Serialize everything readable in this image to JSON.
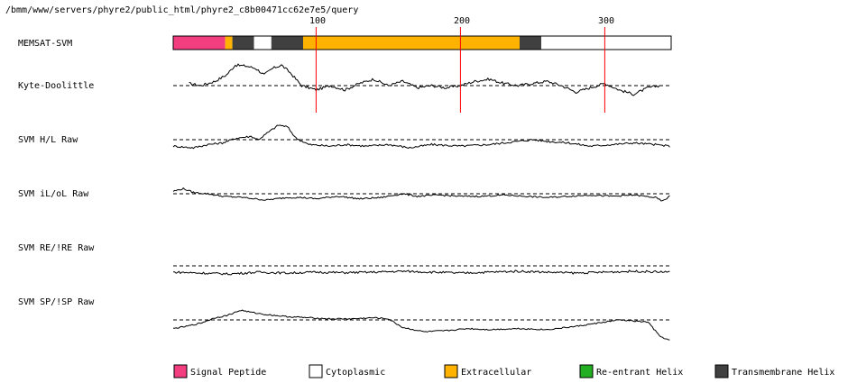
{
  "path_label": "/bmm/www/servers/phyre2/public_html/phyre2_c8b00471cc62e7e5/query",
  "axis": {
    "ticks": [
      {
        "value": 100,
        "label": "100"
      },
      {
        "value": 200,
        "label": "200"
      },
      {
        "value": 300,
        "label": "300"
      }
    ],
    "length": 345
  },
  "tracks": [
    {
      "key": "memsat",
      "label": "MEMSAT-SVM"
    },
    {
      "key": "kd",
      "label": "Kyte-Doolittle"
    },
    {
      "key": "hl",
      "label": "SVM H/L Raw"
    },
    {
      "key": "iloL",
      "label": "SVM iL/oL Raw"
    },
    {
      "key": "re",
      "label": "SVM RE/!RE Raw"
    },
    {
      "key": "sp",
      "label": "SVM SP/!SP Raw"
    }
  ],
  "memsat_segments": [
    {
      "start": 1,
      "end": 37,
      "type": "signal"
    },
    {
      "start": 37,
      "end": 42,
      "type": "extracellular"
    },
    {
      "start": 42,
      "end": 57,
      "type": "transmembrane"
    },
    {
      "start": 57,
      "end": 69,
      "type": "cytoplasmic"
    },
    {
      "start": 69,
      "end": 91,
      "type": "transmembrane"
    },
    {
      "start": 91,
      "end": 241,
      "type": "extracellular"
    },
    {
      "start": 241,
      "end": 256,
      "type": "transmembrane"
    },
    {
      "start": 256,
      "end": 345,
      "type": "cytoplasmic"
    }
  ],
  "colors": {
    "signal": "#f23d7f",
    "cytoplasmic": "#ffffff",
    "extracellular": "#ffb300",
    "reentrant": "#22b022",
    "transmembrane": "#404040",
    "tick_line": "#ff0000",
    "trace": "#000000",
    "frame": "#000000"
  },
  "legend": [
    {
      "type": "signal",
      "label": "Signal Peptide"
    },
    {
      "type": "cytoplasmic",
      "label": "Cytoplasmic"
    },
    {
      "type": "extracellular",
      "label": "Extracellular"
    },
    {
      "type": "reentrant",
      "label": "Re-entrant Helix"
    },
    {
      "type": "transmembrane",
      "label": "Transmembrane Helix"
    }
  ],
  "profiles": {
    "kd": [
      [
        12,
        0.1
      ],
      [
        20,
        0.0
      ],
      [
        30,
        0.2
      ],
      [
        38,
        0.5
      ],
      [
        44,
        0.95
      ],
      [
        52,
        0.9
      ],
      [
        58,
        0.8
      ],
      [
        64,
        0.5
      ],
      [
        70,
        0.8
      ],
      [
        76,
        0.95
      ],
      [
        82,
        0.6
      ],
      [
        90,
        0.0
      ],
      [
        100,
        -0.2
      ],
      [
        110,
        0.0
      ],
      [
        120,
        -0.2
      ],
      [
        130,
        0.1
      ],
      [
        140,
        0.3
      ],
      [
        150,
        0.0
      ],
      [
        160,
        0.2
      ],
      [
        170,
        -0.1
      ],
      [
        180,
        0.0
      ],
      [
        190,
        -0.1
      ],
      [
        200,
        0.0
      ],
      [
        210,
        0.2
      ],
      [
        220,
        0.3
      ],
      [
        230,
        0.1
      ],
      [
        240,
        0.0
      ],
      [
        250,
        0.1
      ],
      [
        260,
        0.2
      ],
      [
        270,
        0.0
      ],
      [
        280,
        -0.3
      ],
      [
        290,
        -0.1
      ],
      [
        300,
        0.1
      ],
      [
        310,
        -0.2
      ],
      [
        320,
        -0.4
      ],
      [
        330,
        -0.1
      ],
      [
        338,
        0.0
      ]
    ],
    "hl": [
      [
        1,
        -0.4
      ],
      [
        15,
        -0.5
      ],
      [
        25,
        -0.3
      ],
      [
        35,
        -0.2
      ],
      [
        45,
        0.1
      ],
      [
        55,
        0.2
      ],
      [
        60,
        0.0
      ],
      [
        66,
        0.4
      ],
      [
        74,
        0.9
      ],
      [
        80,
        0.8
      ],
      [
        86,
        0.1
      ],
      [
        95,
        -0.3
      ],
      [
        110,
        -0.4
      ],
      [
        120,
        -0.3
      ],
      [
        135,
        -0.4
      ],
      [
        150,
        -0.3
      ],
      [
        165,
        -0.5
      ],
      [
        180,
        -0.3
      ],
      [
        200,
        -0.4
      ],
      [
        220,
        -0.3
      ],
      [
        240,
        -0.1
      ],
      [
        250,
        0.0
      ],
      [
        260,
        -0.1
      ],
      [
        275,
        -0.2
      ],
      [
        290,
        -0.4
      ],
      [
        305,
        -0.3
      ],
      [
        320,
        -0.2
      ],
      [
        335,
        -0.3
      ],
      [
        345,
        -0.4
      ]
    ],
    "iloL": [
      [
        1,
        0.2
      ],
      [
        8,
        0.4
      ],
      [
        15,
        0.1
      ],
      [
        25,
        0.0
      ],
      [
        35,
        -0.2
      ],
      [
        50,
        -0.3
      ],
      [
        65,
        -0.5
      ],
      [
        80,
        -0.3
      ],
      [
        90,
        -0.3
      ],
      [
        100,
        -0.4
      ],
      [
        115,
        -0.2
      ],
      [
        130,
        -0.4
      ],
      [
        145,
        -0.3
      ],
      [
        160,
        0.0
      ],
      [
        170,
        -0.2
      ],
      [
        185,
        -0.1
      ],
      [
        200,
        -0.2
      ],
      [
        215,
        -0.2
      ],
      [
        230,
        -0.1
      ],
      [
        245,
        -0.2
      ],
      [
        260,
        -0.3
      ],
      [
        275,
        -0.2
      ],
      [
        290,
        -0.1
      ],
      [
        305,
        -0.2
      ],
      [
        320,
        -0.1
      ],
      [
        335,
        -0.3
      ],
      [
        340,
        -0.6
      ],
      [
        345,
        -0.2
      ]
    ],
    "re": [
      [
        1,
        -0.35
      ],
      [
        20,
        -0.4
      ],
      [
        40,
        -0.45
      ],
      [
        60,
        -0.35
      ],
      [
        80,
        -0.4
      ],
      [
        100,
        -0.35
      ],
      [
        120,
        -0.38
      ],
      [
        140,
        -0.35
      ],
      [
        160,
        -0.3
      ],
      [
        180,
        -0.35
      ],
      [
        200,
        -0.4
      ],
      [
        220,
        -0.35
      ],
      [
        240,
        -0.3
      ],
      [
        260,
        -0.35
      ],
      [
        280,
        -0.4
      ],
      [
        300,
        -0.35
      ],
      [
        320,
        -0.3
      ],
      [
        345,
        -0.35
      ]
    ],
    "sp": [
      [
        1,
        -0.8
      ],
      [
        10,
        -0.6
      ],
      [
        20,
        -0.3
      ],
      [
        30,
        0.2
      ],
      [
        38,
        0.4
      ],
      [
        48,
        0.9
      ],
      [
        55,
        0.7
      ],
      [
        65,
        0.5
      ],
      [
        80,
        0.3
      ],
      [
        95,
        0.2
      ],
      [
        110,
        0.1
      ],
      [
        125,
        0.1
      ],
      [
        140,
        0.2
      ],
      [
        150,
        0.1
      ],
      [
        160,
        -0.7
      ],
      [
        175,
        -1.1
      ],
      [
        190,
        -1.0
      ],
      [
        205,
        -0.8
      ],
      [
        220,
        -0.9
      ],
      [
        240,
        -0.8
      ],
      [
        260,
        -0.9
      ],
      [
        280,
        -0.6
      ],
      [
        300,
        -0.2
      ],
      [
        310,
        0.0
      ],
      [
        320,
        -0.1
      ],
      [
        330,
        -0.2
      ],
      [
        338,
        -1.5
      ],
      [
        345,
        -1.9
      ]
    ]
  }
}
